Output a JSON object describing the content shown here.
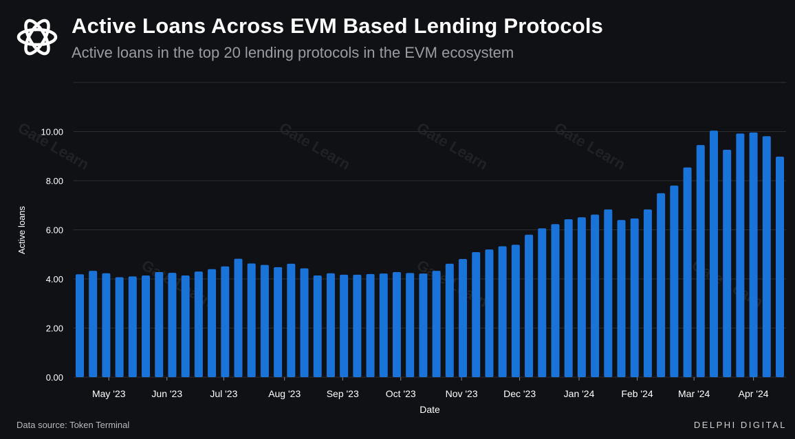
{
  "header": {
    "title": "Active Loans Across EVM Based Lending Protocols",
    "subtitle": "Active loans in the top 20 lending protocols in the EVM ecosystem"
  },
  "footer": {
    "source": "Data source: Token Terminal",
    "brand": "DELPHI DIGITAL"
  },
  "watermark": "Gate Learn",
  "colors": {
    "bar": "#1a73d9",
    "grid": "#2c2e33",
    "background": "#101114"
  },
  "chart_data": {
    "type": "bar",
    "title": "Active Loans Across EVM Based Lending Protocols",
    "xlabel": "Date",
    "ylabel": "Active loans",
    "ylim": [
      0,
      12
    ],
    "yticks": [
      0,
      2,
      4,
      6,
      8,
      10
    ],
    "ytick_labels": [
      "0.00",
      "2.00",
      "4.00",
      "6.00",
      "8.00",
      "10.00"
    ],
    "grid": true,
    "x_ticks": [
      {
        "label": "May '23",
        "index": 2.2
      },
      {
        "label": "Jun '23",
        "index": 6.6
      },
      {
        "label": "Jul '23",
        "index": 10.9
      },
      {
        "label": "Aug '23",
        "index": 15.5
      },
      {
        "label": "Sep '23",
        "index": 19.9
      },
      {
        "label": "Oct '23",
        "index": 24.3
      },
      {
        "label": "Nov '23",
        "index": 28.9
      },
      {
        "label": "Dec '23",
        "index": 33.3
      },
      {
        "label": "Jan '24",
        "index": 37.8
      },
      {
        "label": "Feb '24",
        "index": 42.2
      },
      {
        "label": "Mar '24",
        "index": 46.5
      },
      {
        "label": "Apr '24",
        "index": 51.0
      }
    ],
    "values": [
      4.19,
      4.33,
      4.23,
      4.07,
      4.1,
      4.14,
      4.28,
      4.25,
      4.14,
      4.3,
      4.4,
      4.51,
      4.82,
      4.63,
      4.57,
      4.48,
      4.62,
      4.43,
      4.14,
      4.23,
      4.17,
      4.17,
      4.2,
      4.22,
      4.28,
      4.24,
      4.22,
      4.33,
      4.62,
      4.81,
      5.09,
      5.2,
      5.33,
      5.39,
      5.8,
      6.06,
      6.23,
      6.43,
      6.51,
      6.62,
      6.83,
      6.4,
      6.46,
      6.83,
      7.49,
      7.8,
      8.54,
      9.45,
      10.04,
      9.26,
      9.92,
      9.96,
      9.81,
      8.98
    ]
  }
}
